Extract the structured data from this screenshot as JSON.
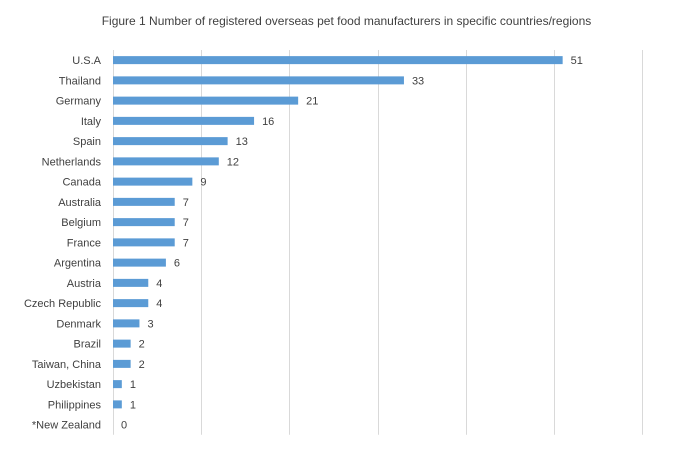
{
  "chart_data": {
    "type": "bar",
    "orientation": "horizontal",
    "title": "Figure 1 Number  of registered overseas pet food manufacturers in specific countries/regions",
    "xlabel": "",
    "ylabel": "",
    "categories": [
      "U.S.A",
      "Thailand",
      "Germany",
      "Italy",
      "Spain",
      "Netherlands",
      "Canada",
      "Australia",
      "Belgium",
      "France",
      "Argentina",
      "Austria",
      "Czech Republic",
      "Denmark",
      "Brazil",
      "Taiwan, China",
      "Uzbekistan",
      "Philippines",
      "*New Zealand"
    ],
    "values": [
      51,
      33,
      21,
      16,
      13,
      12,
      9,
      7,
      7,
      7,
      6,
      4,
      4,
      3,
      2,
      2,
      1,
      1,
      0
    ],
    "xlim": [
      0,
      60
    ],
    "gridlines": true,
    "legend": "none",
    "bar_color": "#5B9BD5"
  }
}
